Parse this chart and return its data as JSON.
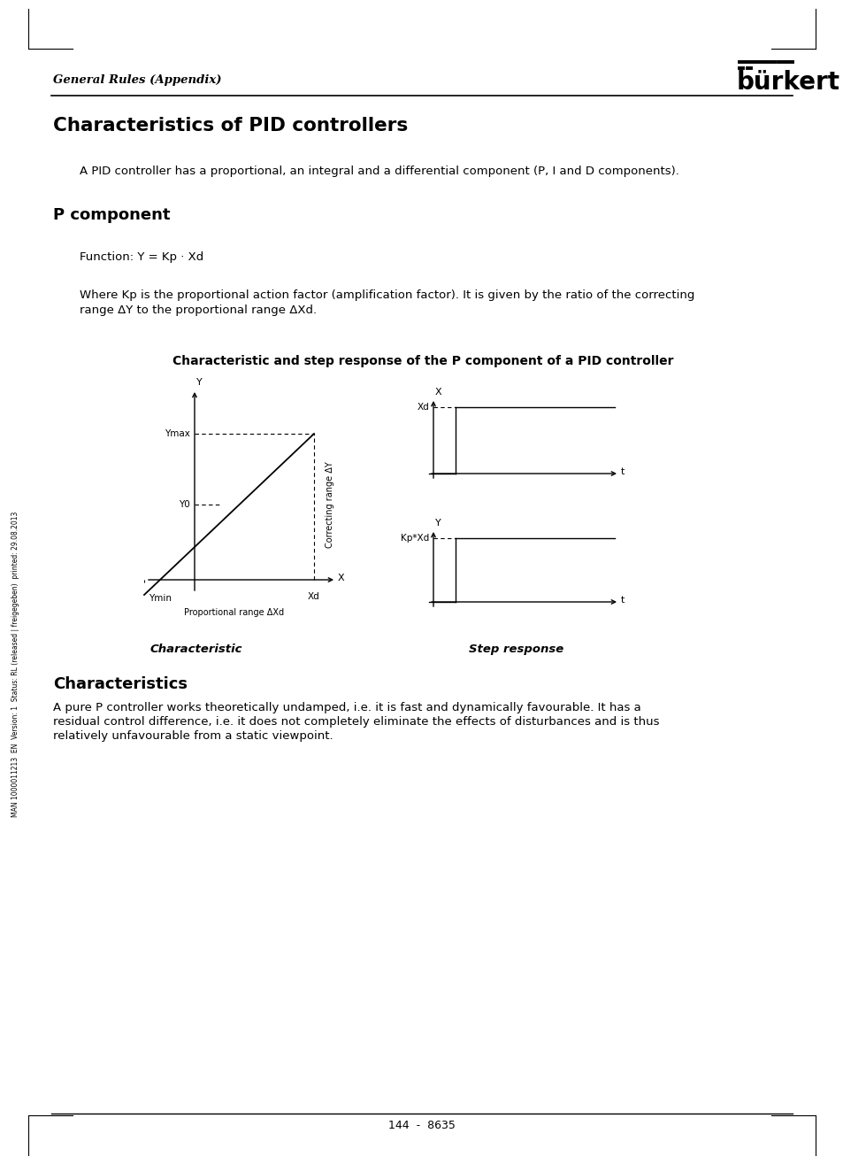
{
  "page_title": "Characteristics of PID controllers",
  "header_text": "General Rules (Appendix)",
  "logo_text": "bürkert",
  "intro_text": "A PID controller has a proportional, an integral and a differential component (P, I and D components).",
  "section1_title": "P component",
  "function_text": "Function: Y = Kp · Xd",
  "where_line1": "Where Kp is the proportional action factor (amplification factor). It is given by the ratio of the correcting",
  "where_line2": "range ΔY to the proportional range ΔXd.",
  "diagram_title": "Characteristic and step response of the P component of a PID controller",
  "char_label": "Characteristic",
  "step_label": "Step response",
  "section2_title": "Characteristics",
  "char_line1": "A pure P controller works theoretically undamped, i.e. it is fast and dynamically favourable. It has a",
  "char_line2": "residual control difference, i.e. it does not completely eliminate the effects of disturbances and is thus",
  "char_line3": "relatively unfavourable from a static viewpoint.",
  "footer_text": "144  -  8635",
  "sidebar_text": "MAN 1000011213  EN  Version: 1  Status: RL (released | freigegeben)  printed: 29.08.2013",
  "background_color": "#ffffff"
}
